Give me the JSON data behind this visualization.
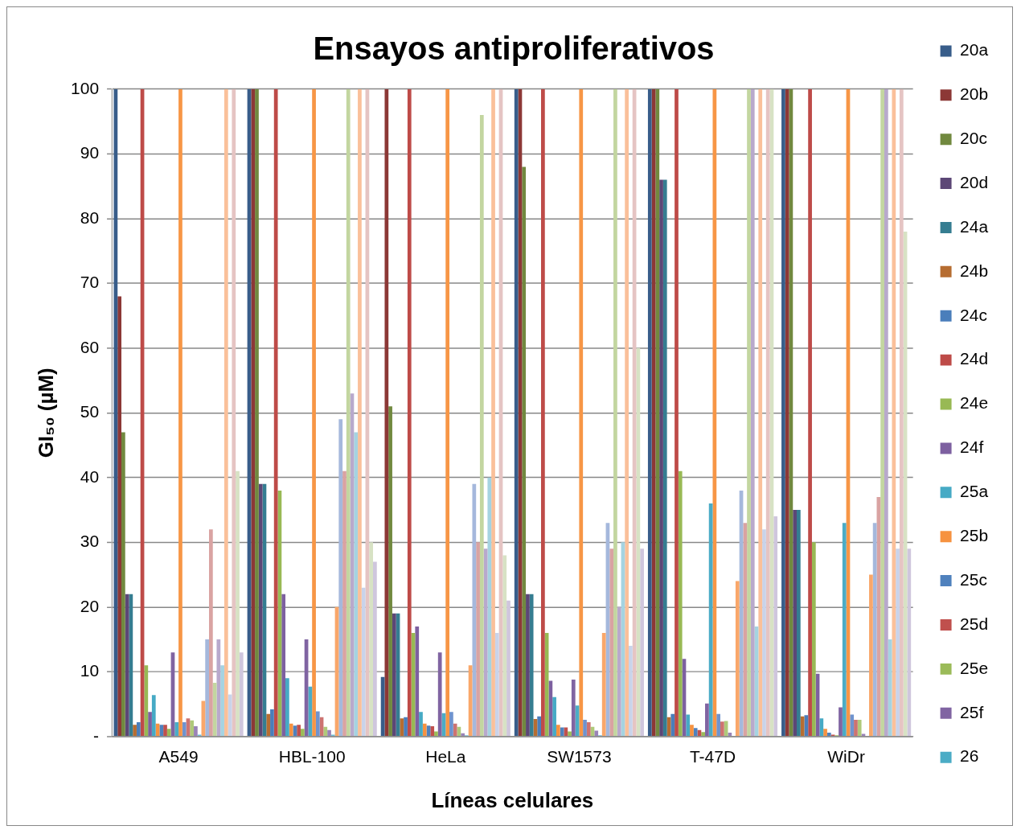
{
  "chart_data": {
    "type": "bar",
    "title": "Ensayos antiproliferativos",
    "xlabel": "Líneas celulares",
    "ylabel": "GI₅₀ (µM)",
    "categories": [
      "A549",
      "HBL-100",
      "HeLa",
      "SW1573",
      "T-47D",
      "WiDr"
    ],
    "ylim": [
      0,
      100
    ],
    "yticks": [
      {
        "value": 0,
        "label": "-"
      },
      10,
      20,
      30,
      40,
      50,
      60,
      70,
      80,
      90,
      100
    ],
    "grid": "y",
    "legend": "right",
    "series": [
      {
        "name": "20a",
        "color": "#385d8a",
        "values": [
          100,
          100,
          9.2,
          100,
          100,
          100
        ]
      },
      {
        "name": "20b",
        "color": "#8c3836",
        "values": [
          68,
          100,
          100,
          100,
          100,
          100
        ]
      },
      {
        "name": "20c",
        "color": "#71893f",
        "values": [
          47,
          100,
          51,
          88,
          100,
          100
        ]
      },
      {
        "name": "20d",
        "color": "#5c4776",
        "values": [
          22,
          39,
          19,
          22,
          86,
          35
        ]
      },
      {
        "name": "24a",
        "color": "#357d91",
        "values": [
          22,
          39,
          19,
          22,
          86,
          35
        ]
      },
      {
        "name": "24b",
        "color": "#b66d31",
        "values": [
          1.8,
          3.5,
          2.8,
          2.7,
          3,
          3.1
        ]
      },
      {
        "name": "24c",
        "color": "#4a7ebb",
        "values": [
          2.2,
          4.2,
          3,
          3.1,
          3.5,
          3.3
        ]
      },
      {
        "name": "24d",
        "color": "#be4b48",
        "values": [
          100,
          100,
          100,
          100,
          100,
          100
        ]
      },
      {
        "name": "24e",
        "color": "#98b954",
        "values": [
          11,
          38,
          16,
          16,
          41,
          30
        ]
      },
      {
        "name": "24f",
        "color": "#7d60a0",
        "values": [
          3.8,
          22,
          17,
          8.6,
          12,
          9.7
        ]
      },
      {
        "name": "25a",
        "color": "#46aac5",
        "values": [
          6.4,
          9,
          3.8,
          6.1,
          3.4,
          2.8
        ]
      },
      {
        "name": "25b",
        "color": "#f69240",
        "values": [
          2,
          2,
          2,
          1.8,
          1.8,
          1.2
        ]
      },
      {
        "name": "25c",
        "color": "#4f81bd",
        "values": [
          1.8,
          1.7,
          1.7,
          1.4,
          1.3,
          0.6
        ]
      },
      {
        "name": "25d",
        "color": "#c0504d",
        "values": [
          1.8,
          1.8,
          1.6,
          1.4,
          1,
          0.3
        ]
      },
      {
        "name": "25e",
        "color": "#9bbb59",
        "values": [
          1.2,
          1.2,
          0.8,
          0.8,
          0.7,
          0.2
        ]
      },
      {
        "name": "25f",
        "color": "#8064a2",
        "values": [
          13,
          15,
          13,
          8.8,
          5.1,
          4.5
        ]
      },
      {
        "name": "26",
        "color": "#4bacc6",
        "values": [
          2.2,
          7.7,
          3.6,
          4.8,
          36,
          33
        ]
      },
      {
        "color": "#f79646",
        "values": [
          100,
          100,
          100,
          100,
          100,
          100
        ]
      },
      {
        "color": "#6f93ce",
        "values": [
          2.2,
          3.9,
          3.8,
          2.6,
          3.5,
          3.4
        ]
      },
      {
        "color": "#cd7371",
        "values": [
          2.8,
          3,
          2,
          2.2,
          2.3,
          2.6
        ]
      },
      {
        "color": "#afc97a",
        "values": [
          2.5,
          1.5,
          1.5,
          1.5,
          2.4,
          2.6
        ]
      },
      {
        "color": "#9983b7",
        "values": [
          1.6,
          1,
          0.5,
          0.9,
          0.6,
          0.4
        ]
      },
      {
        "color": "#6fbdd2",
        "values": [
          0.3,
          0.3,
          0.2,
          0.2,
          0.1,
          0.1
        ]
      },
      {
        "color": "#f9a76a",
        "values": [
          5.5,
          20,
          11,
          16,
          24,
          25
        ]
      },
      {
        "color": "#a5b8dc",
        "values": [
          15,
          49,
          39,
          33,
          38,
          33
        ]
      },
      {
        "color": "#d9a3a2",
        "values": [
          32,
          41,
          30,
          29,
          33,
          37
        ]
      },
      {
        "color": "#c3d6a0",
        "values": [
          8.3,
          100,
          96,
          100,
          100,
          100
        ]
      },
      {
        "color": "#b8a9cc",
        "values": [
          15,
          53,
          29,
          20,
          100,
          100
        ]
      },
      {
        "color": "#a5d3e1",
        "values": [
          11,
          47,
          40,
          30,
          17,
          15
        ]
      },
      {
        "color": "#fac09a",
        "values": [
          100,
          100,
          100,
          100,
          100,
          100
        ]
      },
      {
        "color": "#c9d3ea",
        "values": [
          6.5,
          23,
          16,
          14,
          32,
          29
        ]
      },
      {
        "color": "#e5c4c3",
        "values": [
          100,
          100,
          100,
          100,
          100,
          100
        ]
      },
      {
        "color": "#d7e2c4",
        "values": [
          41,
          30,
          28,
          60,
          100,
          78
        ]
      },
      {
        "color": "#cfc6dd",
        "values": [
          13,
          27,
          21,
          29,
          34,
          29
        ]
      }
    ]
  }
}
